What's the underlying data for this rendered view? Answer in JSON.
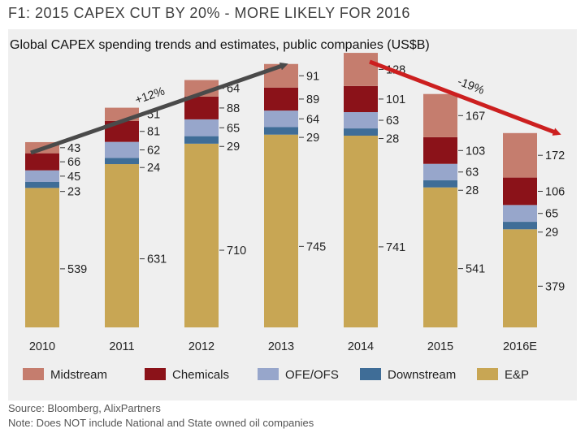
{
  "figure_title": "F1: 2015 CAPEX CUT BY 20% - MORE LIKELY FOR 2016",
  "source": "Source:  Bloomberg, AlixPartners",
  "note": "Note: Does NOT include National and State owned oil companies",
  "colors": {
    "E&P": "#c8a654",
    "Downstream": "#3f6d97",
    "OFE/OFS": "#97a6cb",
    "Chemicals": "#8b1219",
    "Midstream": "#c57d6e",
    "up_arrow": "#4a4a4a",
    "down_arrow": "#cc1f1f"
  },
  "chart_data": {
    "type": "bar",
    "stacked": true,
    "title": "Global CAPEX spending trends and estimates, public companies (US$B)",
    "categories": [
      "2010",
      "2011",
      "2012",
      "2013",
      "2014",
      "2015",
      "2016E"
    ],
    "series": [
      {
        "name": "E&P",
        "values": [
          539,
          631,
          710,
          745,
          741,
          541,
          379
        ]
      },
      {
        "name": "Downstream",
        "values": [
          23,
          24,
          29,
          29,
          28,
          28,
          29
        ]
      },
      {
        "name": "OFE/OFS",
        "values": [
          45,
          62,
          65,
          64,
          63,
          63,
          65
        ]
      },
      {
        "name": "Chemicals",
        "values": [
          66,
          81,
          88,
          89,
          101,
          103,
          106
        ]
      },
      {
        "name": "Midstream",
        "values": [
          43,
          51,
          64,
          91,
          128,
          167,
          172
        ]
      }
    ],
    "legend_order": [
      "Midstream",
      "Chemicals",
      "OFE/OFS",
      "Downstream",
      "E&P"
    ],
    "legend_position": "bottom",
    "annotations": [
      {
        "text": "+12%",
        "type": "trend-arrow-up"
      },
      {
        "text": "-19%",
        "type": "trend-arrow-down"
      }
    ],
    "xlabel": "",
    "ylabel": "",
    "ylim": [
      0,
      1100
    ],
    "grid": false
  }
}
